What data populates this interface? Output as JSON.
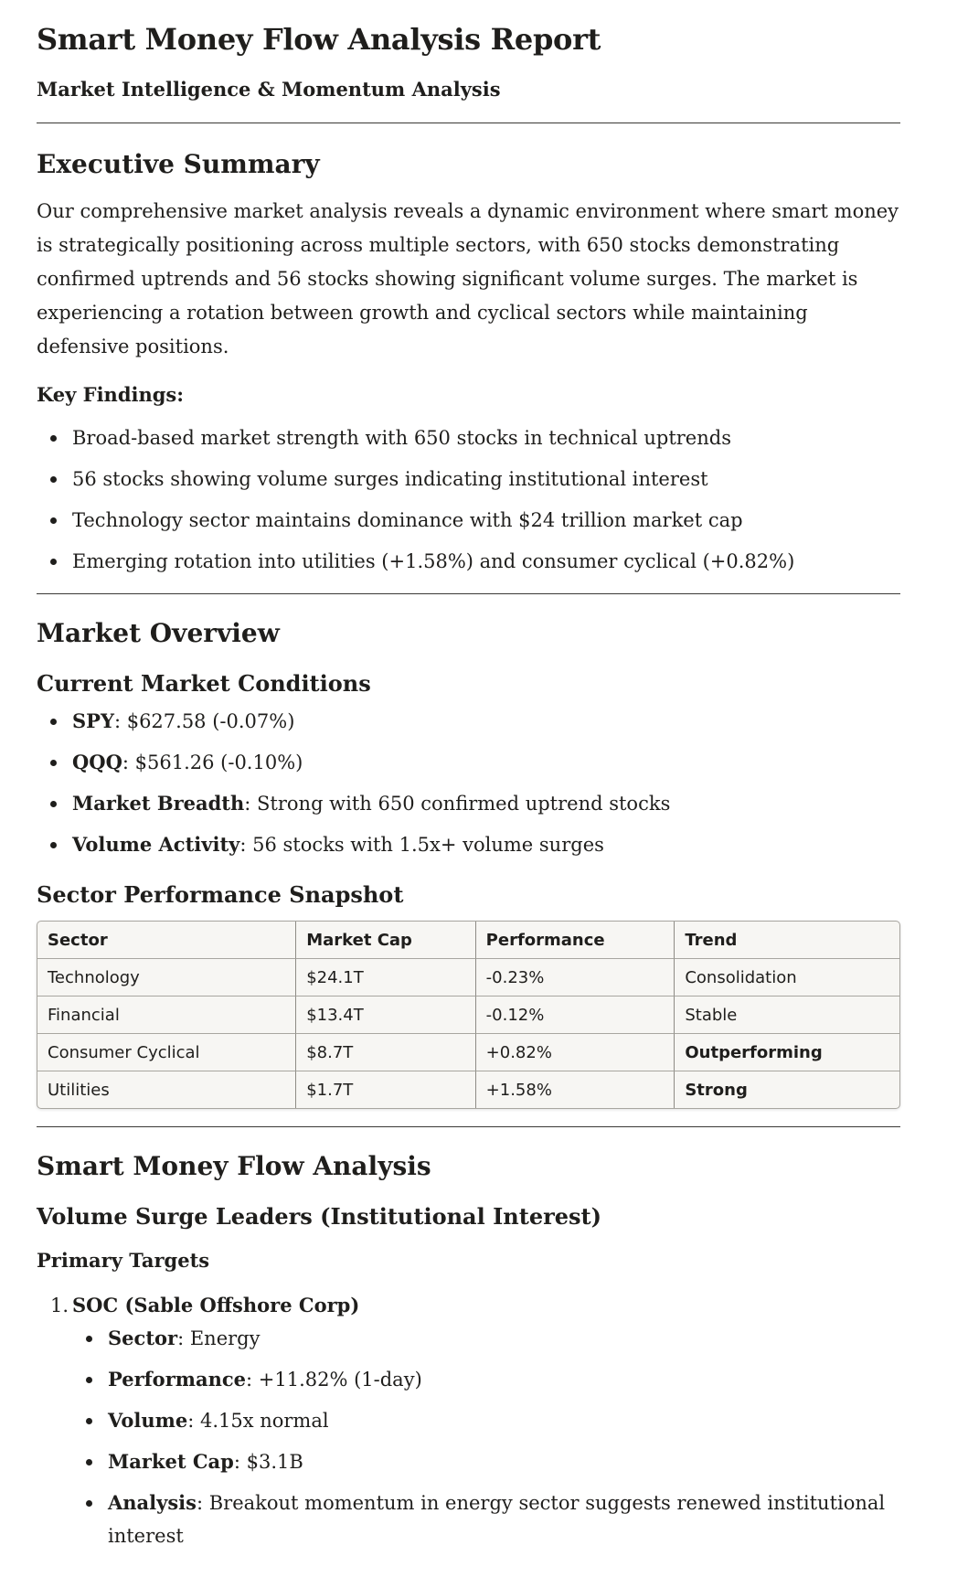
{
  "title": "Smart Money Flow Analysis Report",
  "subtitle": "Market Intelligence & Momentum Analysis",
  "executive_summary": {
    "heading": "Executive Summary",
    "paragraph": "Our comprehensive market analysis reveals a dynamic environment where smart money is strategically positioning across multiple sectors, with 650 stocks demonstrating confirmed uptrends and 56 stocks showing significant volume surges. The market is experiencing a rotation between growth and cyclical sectors while maintaining defensive positions.",
    "key_findings_label": "Key Findings:",
    "key_findings": [
      "Broad-based market strength with 650 stocks in technical uptrends",
      "56 stocks showing volume surges indicating institutional interest",
      "Technology sector maintains dominance with $24 trillion market cap",
      "Emerging rotation into utilities (+1.58%) and consumer cyclical (+0.82%)"
    ]
  },
  "market_overview": {
    "heading": "Market Overview",
    "conditions_heading": "Current Market Conditions",
    "conditions": [
      {
        "label": "SPY",
        "value": ": $627.58 (-0.07%)"
      },
      {
        "label": "QQQ",
        "value": ": $561.26 (-0.10%)"
      },
      {
        "label": "Market Breadth",
        "value": ": Strong with 650 confirmed uptrend stocks"
      },
      {
        "label": "Volume Activity",
        "value": ": 56 stocks with 1.5x+ volume surges"
      }
    ],
    "sector_heading": "Sector Performance Snapshot",
    "table": {
      "headers": [
        "Sector",
        "Market Cap",
        "Performance",
        "Trend"
      ],
      "rows": [
        [
          "Technology",
          "$24.1T",
          "-0.23%",
          "Consolidation"
        ],
        [
          "Financial",
          "$13.4T",
          "-0.12%",
          "Stable"
        ],
        [
          "Consumer Cyclical",
          "$8.7T",
          "+0.82%",
          "Outperforming"
        ],
        [
          "Utilities",
          "$1.7T",
          "+1.58%",
          "Strong"
        ]
      ]
    }
  },
  "smart_money": {
    "heading": "Smart Money Flow Analysis",
    "subheading": "Volume Surge Leaders (Institutional Interest)",
    "primary_targets_label": "Primary Targets",
    "targets": [
      {
        "number": "1.",
        "name": "SOC (Sable Offshore Corp)",
        "details": [
          {
            "label": "Sector",
            "value": ": Energy"
          },
          {
            "label": "Performance",
            "value": ": +11.82% (1-day)"
          },
          {
            "label": "Volume",
            "value": ": 4.15x normal"
          },
          {
            "label": "Market Cap",
            "value": ": $3.1B"
          },
          {
            "label": "Analysis",
            "value": ": Breakout momentum in energy sector suggests renewed institutional interest"
          }
        ]
      }
    ]
  }
}
